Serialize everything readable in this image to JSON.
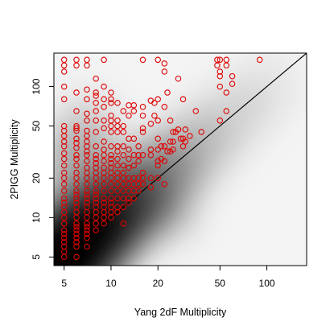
{
  "chart_data": {
    "type": "scatter",
    "title": "",
    "xlabel": "Yang 2dF Multiplicity",
    "ylabel": "2PIGG Multiplicity",
    "xscale": "log",
    "yscale": "log",
    "xlim": [
      4.3,
      180
    ],
    "ylim": [
      4.3,
      180
    ],
    "xticks": [
      5,
      10,
      20,
      50,
      100
    ],
    "yticks": [
      5,
      10,
      20,
      50,
      100
    ],
    "grid": false,
    "legend": "none",
    "background": "grayscale density map of the full sample, darkest near low multiplicities along the 1:1 line",
    "reference_line": "y = x",
    "marker": "open circle",
    "colors": {
      "points": "#e00000",
      "line": "#000000",
      "frame": "#000000"
    },
    "series": [
      {
        "values": [
          [
            5,
            5
          ],
          [
            5,
            5.5
          ],
          [
            5,
            6
          ],
          [
            5,
            6.5
          ],
          [
            5,
            7
          ],
          [
            5,
            7.5
          ],
          [
            5,
            8
          ],
          [
            5,
            9
          ],
          [
            5,
            10
          ],
          [
            5,
            11
          ],
          [
            5,
            12
          ],
          [
            5,
            13
          ],
          [
            5,
            14
          ],
          [
            5,
            16
          ],
          [
            5,
            18
          ],
          [
            5,
            20
          ],
          [
            5,
            22
          ],
          [
            5,
            25
          ],
          [
            5,
            28
          ],
          [
            5,
            31
          ],
          [
            5,
            35
          ],
          [
            5,
            38
          ],
          [
            5,
            42
          ],
          [
            5,
            46
          ],
          [
            5,
            50
          ],
          [
            5,
            80
          ],
          [
            5,
            100
          ],
          [
            5,
            130
          ],
          [
            5,
            145
          ],
          [
            5,
            160
          ],
          [
            6,
            5
          ],
          [
            6,
            6
          ],
          [
            6,
            6.5
          ],
          [
            6,
            7
          ],
          [
            6,
            7.5
          ],
          [
            6,
            8
          ],
          [
            6,
            8.5
          ],
          [
            6,
            9
          ],
          [
            6,
            10
          ],
          [
            6,
            11
          ],
          [
            6,
            12
          ],
          [
            6,
            13
          ],
          [
            6,
            14
          ],
          [
            6,
            15
          ],
          [
            6,
            16
          ],
          [
            6,
            18
          ],
          [
            6,
            20
          ],
          [
            6,
            22
          ],
          [
            6,
            25
          ],
          [
            6,
            28
          ],
          [
            6,
            30
          ],
          [
            6,
            34
          ],
          [
            6,
            37
          ],
          [
            6,
            40
          ],
          [
            6,
            46
          ],
          [
            6,
            48
          ],
          [
            6,
            50
          ],
          [
            6,
            65
          ],
          [
            6,
            90
          ],
          [
            6,
            145
          ],
          [
            6,
            160
          ],
          [
            7,
            6
          ],
          [
            7,
            7
          ],
          [
            7,
            7.5
          ],
          [
            7,
            8
          ],
          [
            7,
            8.5
          ],
          [
            7,
            9
          ],
          [
            7,
            10
          ],
          [
            7,
            11
          ],
          [
            7,
            12
          ],
          [
            7,
            13
          ],
          [
            7,
            14
          ],
          [
            7,
            15
          ],
          [
            7,
            16
          ],
          [
            7,
            18
          ],
          [
            7,
            20
          ],
          [
            7,
            22
          ],
          [
            7,
            24
          ],
          [
            7,
            27
          ],
          [
            7,
            30
          ],
          [
            7,
            32
          ],
          [
            7,
            35
          ],
          [
            7,
            38
          ],
          [
            7,
            42
          ],
          [
            7,
            46
          ],
          [
            7,
            55
          ],
          [
            7,
            62
          ],
          [
            7,
            80
          ],
          [
            7,
            95
          ],
          [
            7,
            145
          ],
          [
            7,
            160
          ],
          [
            8,
            8
          ],
          [
            8,
            9
          ],
          [
            8,
            10
          ],
          [
            8,
            11
          ],
          [
            8,
            12
          ],
          [
            8,
            13
          ],
          [
            8,
            14
          ],
          [
            8,
            15
          ],
          [
            8,
            16
          ],
          [
            8,
            18
          ],
          [
            8,
            20
          ],
          [
            8,
            22
          ],
          [
            8,
            24
          ],
          [
            8,
            26
          ],
          [
            8,
            28
          ],
          [
            8,
            30
          ],
          [
            8,
            35
          ],
          [
            8,
            45
          ],
          [
            8,
            55
          ],
          [
            8,
            65
          ],
          [
            8,
            75
          ],
          [
            8,
            85
          ],
          [
            8,
            90
          ],
          [
            8,
            115
          ],
          [
            9,
            9
          ],
          [
            9,
            10
          ],
          [
            9,
            11
          ],
          [
            9,
            12
          ],
          [
            9,
            13
          ],
          [
            9,
            14
          ],
          [
            9,
            16
          ],
          [
            9,
            18
          ],
          [
            9,
            20
          ],
          [
            9,
            22
          ],
          [
            9,
            24
          ],
          [
            9,
            27
          ],
          [
            9,
            30
          ],
          [
            9,
            33
          ],
          [
            9,
            38
          ],
          [
            9,
            48
          ],
          [
            9,
            55
          ],
          [
            9,
            70
          ],
          [
            9,
            80
          ],
          [
            9,
            100
          ],
          [
            9,
            160
          ],
          [
            10,
            10
          ],
          [
            10,
            11
          ],
          [
            10,
            12
          ],
          [
            10,
            13
          ],
          [
            10,
            14
          ],
          [
            10,
            16
          ],
          [
            10,
            18
          ],
          [
            10,
            20
          ],
          [
            10,
            22
          ],
          [
            10,
            24
          ],
          [
            10,
            26
          ],
          [
            10,
            28
          ],
          [
            10,
            30
          ],
          [
            10,
            35
          ],
          [
            10,
            45
          ],
          [
            10,
            50
          ],
          [
            10,
            55
          ],
          [
            10,
            60
          ],
          [
            10,
            75
          ],
          [
            10,
            80
          ],
          [
            10,
            90
          ],
          [
            11,
            11
          ],
          [
            11,
            12
          ],
          [
            11,
            14
          ],
          [
            11,
            16
          ],
          [
            11,
            18
          ],
          [
            11,
            20
          ],
          [
            11,
            22
          ],
          [
            11,
            25
          ],
          [
            11,
            28
          ],
          [
            11,
            32
          ],
          [
            11,
            35
          ],
          [
            11,
            45
          ],
          [
            11,
            50
          ],
          [
            11,
            55
          ],
          [
            11,
            75
          ],
          [
            12,
            9
          ],
          [
            12,
            12
          ],
          [
            12,
            14
          ],
          [
            12,
            16
          ],
          [
            12,
            18
          ],
          [
            12,
            20
          ],
          [
            12,
            22
          ],
          [
            12,
            25
          ],
          [
            12,
            30
          ],
          [
            12,
            35
          ],
          [
            12,
            45
          ],
          [
            12,
            50
          ],
          [
            12,
            65
          ],
          [
            13,
            13
          ],
          [
            13,
            14
          ],
          [
            13,
            16
          ],
          [
            13,
            18
          ],
          [
            13,
            20
          ],
          [
            13,
            24
          ],
          [
            13,
            28
          ],
          [
            13,
            33
          ],
          [
            13,
            40
          ],
          [
            13,
            60
          ],
          [
            13,
            72
          ],
          [
            14,
            14
          ],
          [
            14,
            16
          ],
          [
            14,
            18
          ],
          [
            14,
            20
          ],
          [
            14,
            25
          ],
          [
            14,
            30
          ],
          [
            14,
            40
          ],
          [
            14,
            65
          ],
          [
            14,
            72
          ],
          [
            15,
            16
          ],
          [
            15,
            18
          ],
          [
            15,
            20
          ],
          [
            15,
            27
          ],
          [
            15,
            30
          ],
          [
            15,
            35
          ],
          [
            16,
            18
          ],
          [
            16,
            20
          ],
          [
            16,
            22
          ],
          [
            16,
            30
          ],
          [
            16,
            45
          ],
          [
            16,
            48
          ],
          [
            16,
            60
          ],
          [
            16,
            70
          ],
          [
            16,
            160
          ],
          [
            18,
            17
          ],
          [
            18,
            20
          ],
          [
            18,
            30
          ],
          [
            18,
            33
          ],
          [
            18,
            52
          ],
          [
            18,
            78
          ],
          [
            19,
            60
          ],
          [
            19,
            75
          ],
          [
            20,
            20
          ],
          [
            20,
            25
          ],
          [
            20,
            27
          ],
          [
            20,
            33
          ],
          [
            20,
            40
          ],
          [
            20,
            55
          ],
          [
            20,
            80
          ],
          [
            20,
            160
          ],
          [
            21,
            28
          ],
          [
            21,
            35
          ],
          [
            22,
            18
          ],
          [
            22,
            27
          ],
          [
            22,
            35
          ],
          [
            22,
            70
          ],
          [
            22,
            130
          ],
          [
            22,
            150
          ],
          [
            23,
            32
          ],
          [
            23,
            90
          ],
          [
            24,
            32
          ],
          [
            24,
            38
          ],
          [
            24,
            55
          ],
          [
            25,
            33
          ],
          [
            25,
            38
          ],
          [
            25,
            45
          ],
          [
            26,
            45
          ],
          [
            27,
            47
          ],
          [
            27,
            115
          ],
          [
            28,
            40
          ],
          [
            29,
            35
          ],
          [
            29,
            40
          ],
          [
            29,
            80
          ],
          [
            30,
            38
          ],
          [
            30,
            47
          ],
          [
            32,
            42
          ],
          [
            35,
            65
          ],
          [
            38,
            45
          ],
          [
            48,
            145
          ],
          [
            48,
            160
          ],
          [
            50,
            55
          ],
          [
            50,
            100
          ],
          [
            50,
            120
          ],
          [
            50,
            130
          ],
          [
            50,
            160
          ],
          [
            55,
            65
          ],
          [
            55,
            90
          ],
          [
            55,
            145
          ],
          [
            55,
            160
          ],
          [
            60,
            105
          ],
          [
            60,
            120
          ],
          [
            90,
            160
          ]
        ]
      }
    ]
  }
}
